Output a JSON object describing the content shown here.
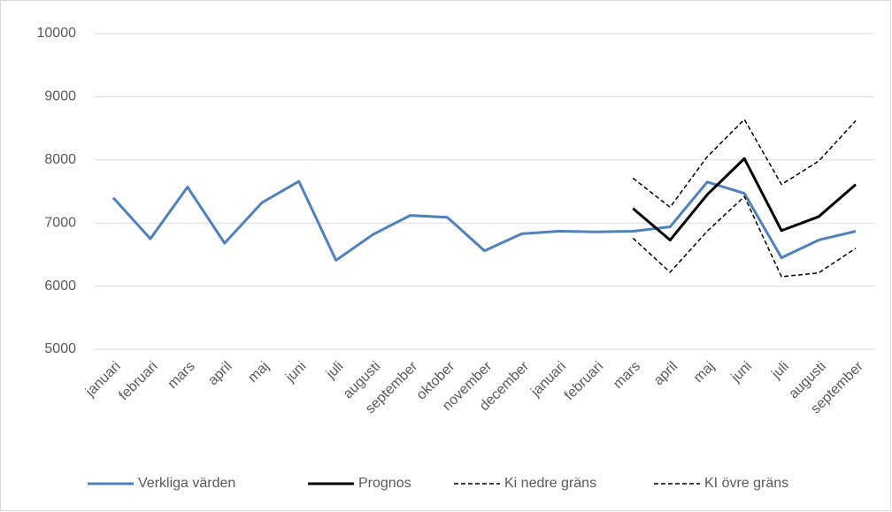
{
  "chart_data": {
    "type": "line",
    "categories": [
      "januari",
      "februari",
      "mars",
      "april",
      "maj",
      "juni",
      "juli",
      "augusti",
      "september",
      "oktober",
      "november",
      "december",
      "januari",
      "februari",
      "mars",
      "april",
      "maj",
      "juni",
      "juli",
      "augusti",
      "september"
    ],
    "series": [
      {
        "name": "Verkliga värden",
        "color": "#4f81bd",
        "style": "solid",
        "values": [
          7400,
          6750,
          7570,
          6680,
          7320,
          7660,
          6410,
          6820,
          7120,
          7090,
          6560,
          6830,
          6870,
          6860,
          6870,
          6940,
          7650,
          7470,
          6450,
          6730,
          6870
        ]
      },
      {
        "name": "Prognos",
        "color": "#000000",
        "style": "solid",
        "values": [
          null,
          null,
          null,
          null,
          null,
          null,
          null,
          null,
          null,
          null,
          null,
          null,
          null,
          null,
          7230,
          6730,
          7450,
          8020,
          6880,
          7100,
          7610
        ]
      },
      {
        "name": "Ki nedre gräns",
        "color": "#000000",
        "style": "dashed",
        "values": [
          null,
          null,
          null,
          null,
          null,
          null,
          null,
          null,
          null,
          null,
          null,
          null,
          null,
          null,
          6760,
          6220,
          6870,
          7420,
          6150,
          6210,
          6600
        ]
      },
      {
        "name": "KI övre gräns",
        "color": "#000000",
        "style": "dashed",
        "values": [
          null,
          null,
          null,
          null,
          null,
          null,
          null,
          null,
          null,
          null,
          null,
          null,
          null,
          null,
          7710,
          7250,
          8050,
          8640,
          7610,
          7980,
          8620
        ]
      }
    ],
    "ylim": [
      5000,
      10000
    ],
    "yticks": [
      5000,
      6000,
      7000,
      8000,
      9000,
      10000
    ],
    "grid": true,
    "legend": "bottom"
  }
}
